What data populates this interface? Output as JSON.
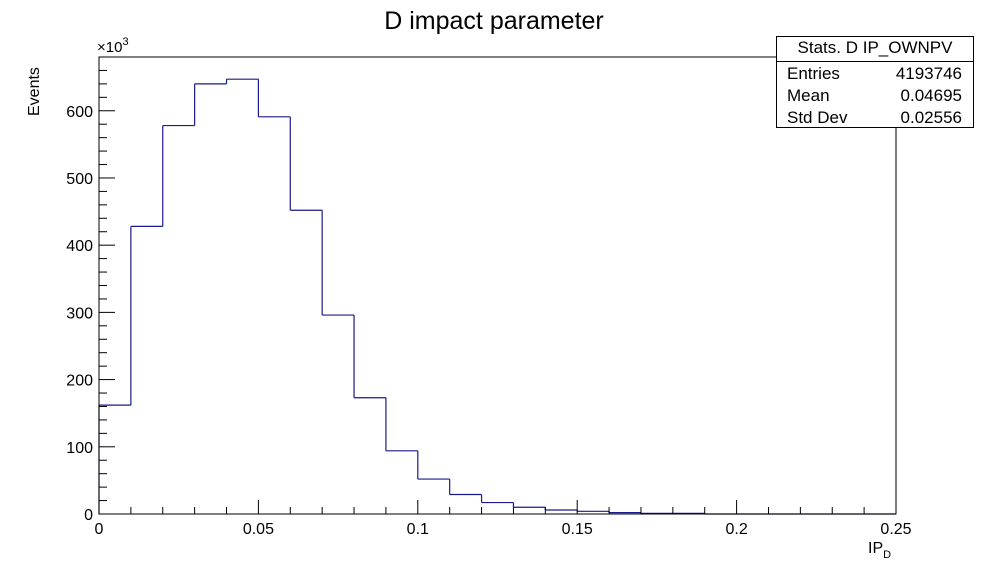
{
  "chart_data": {
    "type": "histogram",
    "title": "D impact parameter",
    "xlabel": "IP",
    "xlabel_subscript": "D",
    "ylabel": "Events",
    "y_exponent_base": "×10",
    "y_exponent_power": "3",
    "xlim": [
      0,
      0.25
    ],
    "ylim": [
      0,
      680
    ],
    "bin_edges": [
      0,
      0.01,
      0.02,
      0.03,
      0.04,
      0.05,
      0.06,
      0.07,
      0.08,
      0.09,
      0.1,
      0.11,
      0.12,
      0.13,
      0.14,
      0.15,
      0.16,
      0.17,
      0.18,
      0.19,
      0.2,
      0.21,
      0.22,
      0.23,
      0.24,
      0.25
    ],
    "values": [
      162,
      428,
      578,
      640,
      647,
      591,
      452,
      296,
      173,
      94,
      52,
      29,
      17,
      10,
      6,
      4,
      2,
      1,
      1,
      0,
      0,
      0,
      0,
      0,
      0
    ],
    "x_ticks": [
      0,
      0.05,
      0.1,
      0.15,
      0.2,
      0.25
    ],
    "x_tick_labels": [
      "0",
      "0.05",
      "0.1",
      "0.15",
      "0.2",
      "0.25"
    ],
    "y_ticks": [
      0,
      100,
      200,
      300,
      400,
      500,
      600
    ],
    "y_tick_labels": [
      "0",
      "100",
      "200",
      "300",
      "400",
      "500",
      "600"
    ],
    "line_color": "#1a1a8c"
  },
  "stats": {
    "title": "Stats. D IP_OWNPV",
    "rows": [
      {
        "label": "Entries",
        "value": "4193746"
      },
      {
        "label": "Mean",
        "value": "0.04695"
      },
      {
        "label": "Std Dev",
        "value": "0.02556"
      }
    ]
  }
}
